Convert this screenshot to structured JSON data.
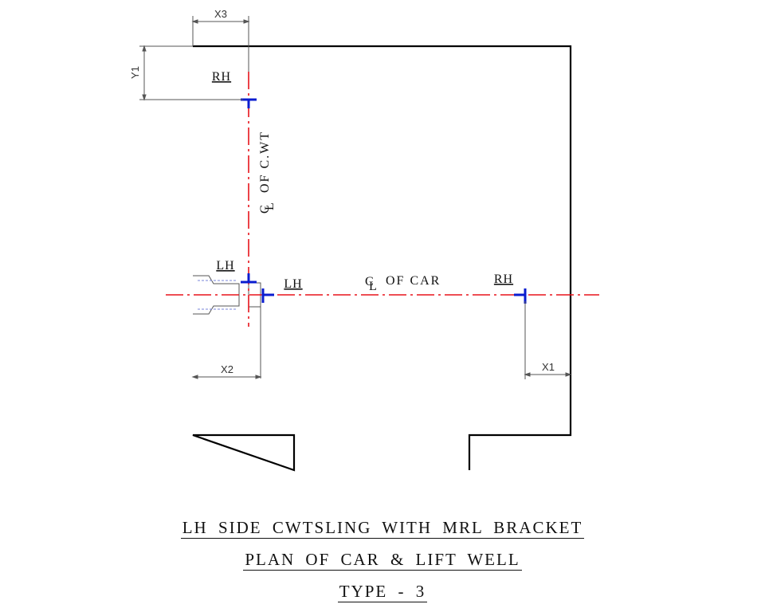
{
  "dimensions": {
    "x1": "X1",
    "x2": "X2",
    "x3": "X3",
    "y1": "Y1"
  },
  "labels": {
    "rh_top": "RH",
    "rh_right": "RH",
    "lh_upper": "LH",
    "lh_lower": "LH",
    "centerline_symbol": "C",
    "centerline_symbol_sub": "L",
    "cl_car": "OF CAR",
    "cl_cwt": "OF C.WT"
  },
  "titles": {
    "line1": "LH SIDE CWTSLING WITH MRL BRACKET",
    "line2": "PLAN OF CAR & LIFT WELL",
    "line3": "TYPE - 3"
  },
  "colors": {
    "outline": "#000000",
    "centerline": "#e8141c",
    "bracket": "#0a1ccf",
    "dimension": "#555555"
  }
}
